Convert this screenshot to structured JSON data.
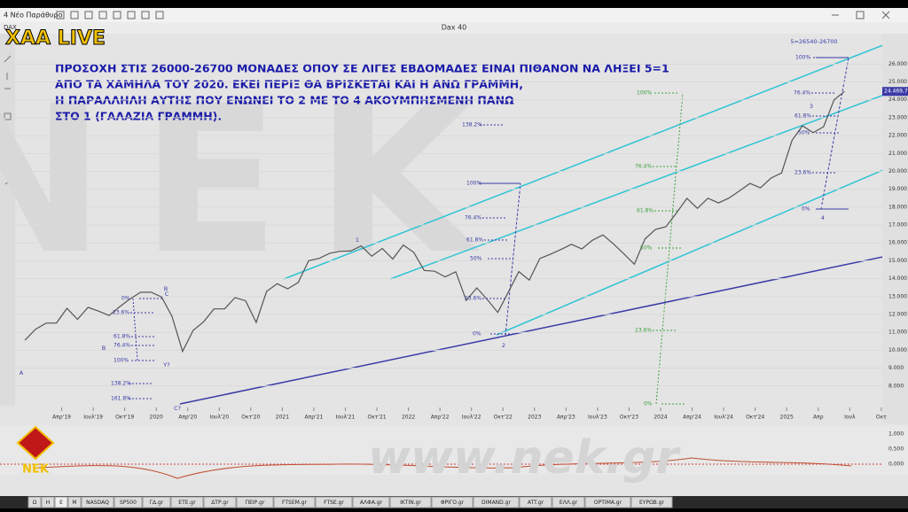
{
  "window": {
    "title": "4 Νέο Παράθυρο"
  },
  "chart_header": {
    "symbol": "DAX",
    "name": "Dax 40",
    "price_tag": "24.469,75"
  },
  "logo": "ΧΑΑ LIVE",
  "brand": "ΝΕΚ",
  "watermark": "www.nek.gr",
  "big_watermark": "NEK",
  "annotation": [
    "ΠΡΟΣΟΧΗ ΣΤΙΣ 26000-26700 ΜΟΝΑΔΕΣ ΟΠΟΥ ΣΕ ΛΙΓΕΣ ΕΒΔΟΜΑΔΕΣ ΕΙΝΑΙ ΠΙΘΑΝΟΝ ΝΑ ΛΗΞΕΙ 5=1",
    "ΑΠΟ ΤΑ ΧΑΜΗΛΑ ΤΟΥ 2020. ΕΚΕΙ ΠΕΡΙΞ ΘΑ ΒΡΙΣΚΕΤΑΙ ΚΑΙ Η ΑΝΩ ΓΡΑΜΜΗ,",
    "Η ΠΑΡΑΛΛΗΛΗ ΑΥΤΗΣ ΠΟΥ ΕΝΩΝΕΙ ΤΟ 2 ΜΕ ΤΟ 4 ΑΚΟΥΜΠΗΣΜΕΝΗ ΠΑΝΩ",
    "ΣΤΟ 1 (ΓΑΛΑΖΙΑ ΓΡΑΜΜΗ)."
  ],
  "fib_labels": [
    "0%",
    "23.6%",
    "61.8%",
    "76.4%",
    "100%",
    "138.2%",
    "161.8%",
    "138.2%",
    "100%",
    "76.4%",
    "61.8%",
    "50%",
    "23.6%",
    "0%",
    "100%",
    "76.4%",
    "61.8%",
    "50%",
    "23.6%",
    "0%",
    "100%",
    "76.4%",
    "61.8%",
    "50%",
    "23.6%",
    "0%"
  ],
  "wave_labels": [
    "A",
    "B",
    "C",
    "B",
    "C?",
    "Y?",
    "1",
    "2",
    "3",
    "4",
    "5=26540-26700"
  ],
  "indicator_ticks": [
    "1,000",
    "0,500",
    "0,000"
  ],
  "tabs": [
    "Ω",
    "H",
    "E",
    "M",
    "NASDAQ",
    "SP500",
    "ΓΔ.gr",
    "ETE.gr",
    "ΔΤΡ.gr",
    "ΠΕΙΡ.gr",
    "FTSEM.gr",
    "FTSE.gr",
    "ΑΛΦΑ.gr",
    "ΙΚΤΙΝ.gr",
    "ΦΡΙΓΟ.gr",
    "DIMAND.gr",
    "ATT.gr",
    "ΕΛΛ.gr",
    "OPTIMA.gr",
    "EYPΩB.gr"
  ],
  "chart_data": {
    "type": "line",
    "color": "#555555",
    "x": [
      "2018-12",
      "2019-01",
      "2019-02",
      "2019-03",
      "2019-04",
      "2019-05",
      "2019-06",
      "2019-07",
      "2019-08",
      "2019-09",
      "2019-10",
      "2019-11",
      "2019-12",
      "2020-01",
      "2020-02",
      "2020-03",
      "2020-04",
      "2020-05",
      "2020-06",
      "2020-07",
      "2020-08",
      "2020-09",
      "2020-10",
      "2020-11",
      "2020-12",
      "2021-01",
      "2021-02",
      "2021-03",
      "2021-04",
      "2021-05",
      "2021-06",
      "2021-07",
      "2021-08",
      "2021-09",
      "2021-10",
      "2021-11",
      "2021-12",
      "2022-01",
      "2022-02",
      "2022-03",
      "2022-04",
      "2022-05",
      "2022-06",
      "2022-07",
      "2022-08",
      "2022-09",
      "2022-10",
      "2022-11",
      "2022-12",
      "2023-01",
      "2023-02",
      "2023-03",
      "2023-04",
      "2023-05",
      "2023-06",
      "2023-07",
      "2023-08",
      "2023-09",
      "2023-10",
      "2023-11",
      "2023-12",
      "2024-01",
      "2024-02",
      "2024-03",
      "2024-04",
      "2024-05",
      "2024-06",
      "2024-07",
      "2024-08",
      "2024-09",
      "2024-10",
      "2024-11",
      "2024-12",
      "2025-01",
      "2025-02",
      "2025-03",
      "2025-04",
      "2025-05",
      "2025-06"
    ],
    "values": [
      10559,
      11173,
      11515,
      11526,
      12344,
      11726,
      12398,
      12189,
      11939,
      12428,
      12866,
      13236,
      13249,
      12981,
      11890,
      9935,
      11107,
      11587,
      12310,
      12313,
      12945,
      12761,
      11556,
      13291,
      13719,
      13433,
      13786,
      15008,
      15136,
      15421,
      15531,
      15544,
      15835,
      15260,
      15688,
      15100,
      15885,
      15471,
      14461,
      14415,
      14098,
      14388,
      12784,
      13484,
      12835,
      12114,
      13253,
      14397,
      13924,
      15128,
      15365,
      15629,
      15922,
      15664,
      16148,
      16447,
      15947,
      15387,
      14810,
      16215,
      16752,
      16904,
      17678,
      18492,
      17932,
      18498,
      18235,
      18509,
      18907,
      19325,
      19078,
      19626,
      19909,
      21732,
      22551,
      22163,
      22497,
      23997,
      24469.75
    ],
    "ylim": [
      6800,
      27700
    ],
    "yticks": [
      {
        "value": 8000,
        "label": "8.000"
      },
      {
        "value": 9000,
        "label": "9.000"
      },
      {
        "value": 10000,
        "label": "10.000"
      },
      {
        "value": 11000,
        "label": "11.000"
      },
      {
        "value": 12000,
        "label": "12.000"
      },
      {
        "value": 13000,
        "label": "13.000"
      },
      {
        "value": 14000,
        "label": "14.000"
      },
      {
        "value": 15000,
        "label": "15.000"
      },
      {
        "value": 16000,
        "label": "16.000"
      },
      {
        "value": 17000,
        "label": "17.000"
      },
      {
        "value": 18000,
        "label": "18.000"
      },
      {
        "value": 19000,
        "label": "19.000"
      },
      {
        "value": 20000,
        "label": "20.000"
      },
      {
        "value": 21000,
        "label": "21.000"
      },
      {
        "value": 22000,
        "label": "22.000"
      },
      {
        "value": 23000,
        "label": "23.000"
      },
      {
        "value": 24000,
        "label": "24.000"
      },
      {
        "value": 25000,
        "label": "25.000"
      },
      {
        "value": 26000,
        "label": "26.000"
      }
    ],
    "xticks": [
      {
        "value": "2019-04",
        "label": "Απρ'19"
      },
      {
        "value": "2019-07",
        "label": "Ιουλ'19"
      },
      {
        "value": "2019-10",
        "label": "Οκτ'19"
      },
      {
        "value": "2020-01",
        "label": "2020"
      },
      {
        "value": "2020-04",
        "label": "Απρ'20"
      },
      {
        "value": "2020-07",
        "label": "Ιουλ'20"
      },
      {
        "value": "2020-10",
        "label": "Οκτ'20"
      },
      {
        "value": "2021-01",
        "label": "2021"
      },
      {
        "value": "2021-04",
        "label": "Απρ'21"
      },
      {
        "value": "2021-07",
        "label": "Ιουλ'21"
      },
      {
        "value": "2021-10",
        "label": "Οκτ'21"
      },
      {
        "value": "2022-01",
        "label": "2022"
      },
      {
        "value": "2022-04",
        "label": "Απρ'22"
      },
      {
        "value": "2022-07",
        "label": "Ιουλ'22"
      },
      {
        "value": "2022-10",
        "label": "Οκτ'22"
      },
      {
        "value": "2023-01",
        "label": "2023"
      },
      {
        "value": "2023-04",
        "label": "Απρ'23"
      },
      {
        "value": "2023-07",
        "label": "Ιουλ'23"
      },
      {
        "value": "2023-10",
        "label": "Οκτ'23"
      },
      {
        "value": "2024-01",
        "label": "2024"
      },
      {
        "value": "2024-04",
        "label": "Απρ'24"
      },
      {
        "value": "2024-07",
        "label": "Ιουλ'24"
      },
      {
        "value": "2024-10",
        "label": "Οκτ'24"
      },
      {
        "value": "2025-01",
        "label": "2025"
      },
      {
        "value": "2025-04",
        "label": "Απρ"
      },
      {
        "value": "2025-07",
        "label": "Ιουλ"
      },
      {
        "value": "2025-10",
        "label": "Οκτ"
      }
    ]
  }
}
